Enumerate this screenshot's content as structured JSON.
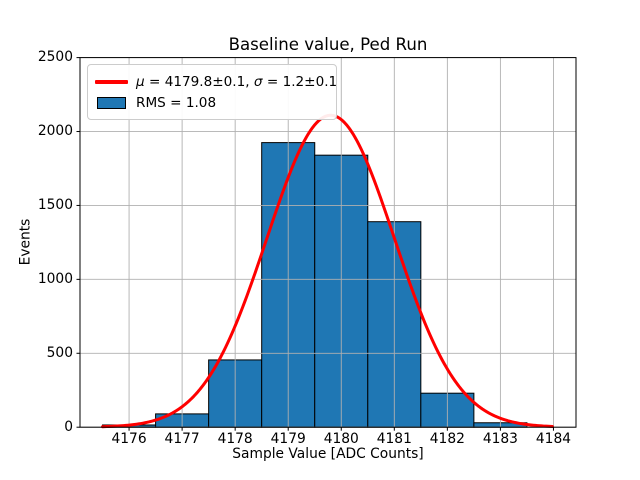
{
  "figure": {
    "title": "Baseline value, Ped Run",
    "xlabel": "Sample Value [ADC Counts]",
    "ylabel": "Events"
  },
  "legend": {
    "fit_entry": {
      "mu_symbol": "μ",
      "mu_value": " = 4179.8±0.1, ",
      "sigma_symbol": "σ",
      "sigma_value": " = 1.2±0.1"
    },
    "hist_entry": {
      "label": "RMS = 1.08"
    }
  },
  "colors": {
    "hist_fill": "#1f77b4",
    "hist_edge": "#000000",
    "fit_line": "#ff0000",
    "grid": "#b0b0b0",
    "axis": "#000000",
    "legend_border": "#cccccc"
  },
  "chart_data": {
    "type": "bar",
    "subtype": "histogram-with-gaussian-fit",
    "title": "Baseline value, Ped Run",
    "xlabel": "Sample Value [ADC Counts]",
    "ylabel": "Events",
    "bin_edges": [
      4175.5,
      4176.5,
      4177.5,
      4178.5,
      4179.5,
      4180.5,
      4181.5,
      4182.5,
      4183.5
    ],
    "counts": [
      15,
      90,
      455,
      1925,
      1840,
      1390,
      230,
      30
    ],
    "fit": {
      "model": "gaussian",
      "mu": 4179.8,
      "sigma": 1.2,
      "amplitude": 2110,
      "x_range": [
        4175.5,
        4184.0
      ]
    },
    "xlim": [
      4175.075,
      4184.425
    ],
    "ylim": [
      0,
      2500
    ],
    "x_ticks": [
      4176,
      4177,
      4178,
      4179,
      4180,
      4181,
      4182,
      4183,
      4184
    ],
    "x_tick_labels": [
      "4176",
      "4177",
      "4178",
      "4179",
      "4180",
      "4181",
      "4182",
      "4183",
      "4184"
    ],
    "y_ticks": [
      0,
      500,
      1000,
      1500,
      2000,
      2500
    ],
    "y_tick_labels": [
      "0",
      "500",
      "1000",
      "1500",
      "2000",
      "2500"
    ],
    "grid": true,
    "legend_position": "upper-left"
  }
}
